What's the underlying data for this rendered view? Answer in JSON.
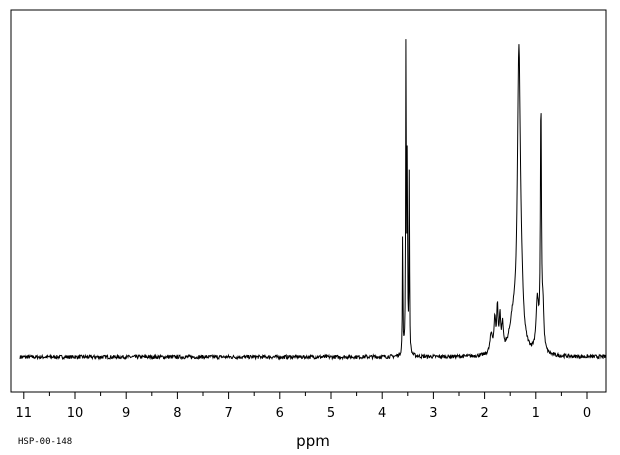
{
  "chart_data": {
    "type": "line",
    "title": "",
    "xlabel": "ppm",
    "ylabel": "",
    "xlim": [
      11.05,
      -0.35
    ],
    "ylim": [
      -0.1,
      1.0
    ],
    "x_reversed": true,
    "grid": false,
    "legend": "none",
    "sample_id": "HSP-00-148",
    "x_ticks": [
      {
        "value": 11,
        "label": "11"
      },
      {
        "value": 10,
        "label": "10"
      },
      {
        "value": 9,
        "label": "9"
      },
      {
        "value": 8,
        "label": "8"
      },
      {
        "value": 7,
        "label": "7"
      },
      {
        "value": 6,
        "label": "6"
      },
      {
        "value": 5,
        "label": "5"
      },
      {
        "value": 4,
        "label": "4"
      },
      {
        "value": 3,
        "label": "3"
      },
      {
        "value": 2,
        "label": "2"
      },
      {
        "value": 1,
        "label": "1"
      },
      {
        "value": 0,
        "label": "0"
      }
    ],
    "minor_tick_step": 0.5,
    "line_color": "#000000",
    "peaks": [
      {
        "x": 3.6,
        "height": 0.41,
        "width": 0.006
      },
      {
        "x": 3.535,
        "height": 1.01,
        "width": 0.007
      },
      {
        "x": 3.51,
        "height": 0.62,
        "width": 0.007
      },
      {
        "x": 3.47,
        "height": 0.58,
        "width": 0.006
      },
      {
        "x": 1.87,
        "height": 0.06,
        "width": 0.03
      },
      {
        "x": 1.8,
        "height": 0.1,
        "width": 0.02
      },
      {
        "x": 1.75,
        "height": 0.14,
        "width": 0.015
      },
      {
        "x": 1.7,
        "height": 0.11,
        "width": 0.015
      },
      {
        "x": 1.65,
        "height": 0.08,
        "width": 0.02
      },
      {
        "x": 1.45,
        "height": 0.09,
        "width": 0.08
      },
      {
        "x": 1.33,
        "height": 0.92,
        "width": 0.035
      },
      {
        "x": 1.28,
        "height": 0.1,
        "width": 0.04
      },
      {
        "x": 0.97,
        "height": 0.16,
        "width": 0.03
      },
      {
        "x": 0.9,
        "height": 0.78,
        "width": 0.012
      },
      {
        "x": 0.86,
        "height": 0.13,
        "width": 0.02
      }
    ]
  }
}
